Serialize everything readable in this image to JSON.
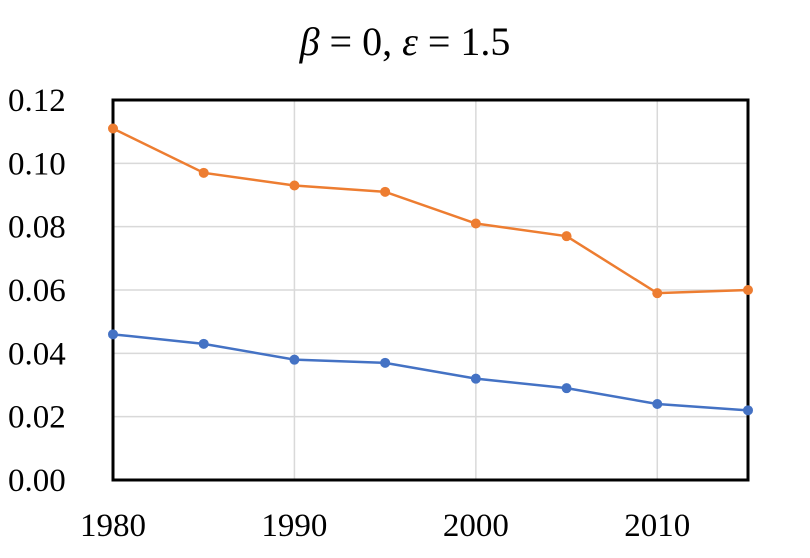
{
  "chart_data": {
    "type": "line",
    "title_parts": {
      "sym1": "β",
      "mid1": " = 0, ",
      "sym2": "ε",
      "mid2": " = 1.5"
    },
    "xlabel": "",
    "ylabel": "",
    "x": [
      1980,
      1985,
      1990,
      1995,
      2000,
      2005,
      2010,
      2015
    ],
    "xlim": [
      1980,
      2015
    ],
    "ylim": [
      0,
      0.12
    ],
    "x_ticks": [
      1980,
      1990,
      2000,
      2010
    ],
    "x_tick_labels": [
      "1980",
      "1990",
      "2000",
      "2010"
    ],
    "y_ticks": [
      0,
      0.02,
      0.04,
      0.06,
      0.08,
      0.1,
      0.12
    ],
    "y_tick_labels": [
      "0.00",
      "0.02",
      "0.04",
      "0.06",
      "0.08",
      "0.10",
      "0.12"
    ],
    "grid": true,
    "series": [
      {
        "color": "#ED7D31",
        "values": [
          0.111,
          0.097,
          0.093,
          0.091,
          0.081,
          0.077,
          0.059,
          0.06
        ]
      },
      {
        "color": "#4472C4",
        "values": [
          0.046,
          0.043,
          0.038,
          0.037,
          0.032,
          0.029,
          0.024,
          0.022
        ]
      }
    ]
  }
}
